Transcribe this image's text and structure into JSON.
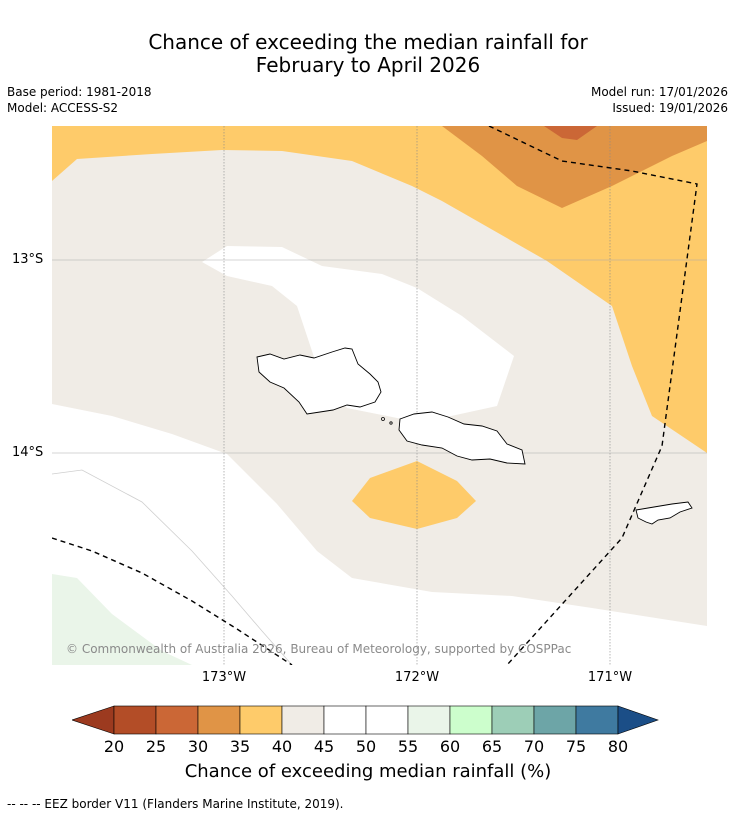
{
  "title": {
    "line1": "Chance of exceeding the median rainfall for",
    "line2": "February to April 2026"
  },
  "meta": {
    "base_period": "Base period: 1981-2018",
    "model": "Model: ACCESS-S2",
    "model_run": "Model run: 17/01/2026",
    "issued": "Issued: 19/01/2026"
  },
  "map": {
    "copyright": "© Commonwealth of Australia 2026, Bureau of Meteorology, supported by COSPPac",
    "lat_labels": [
      "13°S",
      "14°S"
    ],
    "lon_labels": [
      "173°W",
      "172°W",
      "171°W"
    ]
  },
  "colorbar": {
    "ticks": [
      "20",
      "25",
      "30",
      "35",
      "40",
      "45",
      "50",
      "55",
      "60",
      "65",
      "70",
      "75",
      "80"
    ],
    "colors": [
      "#9c3a1f",
      "#b34d27",
      "#cb6736",
      "#e09446",
      "#fecb6a",
      "#f0ece6",
      "#ffffff",
      "#ffffff",
      "#eaf5e9",
      "#ccfecc",
      "#9dceb7",
      "#6da5a7",
      "#3f7aa0",
      "#1b4e87"
    ],
    "title": "Chance of exceeding median rainfall (%)"
  },
  "footer": {
    "legend_text": "--  --  -- EEZ border V11 (Flanders Marine Institute, 2019)."
  }
}
